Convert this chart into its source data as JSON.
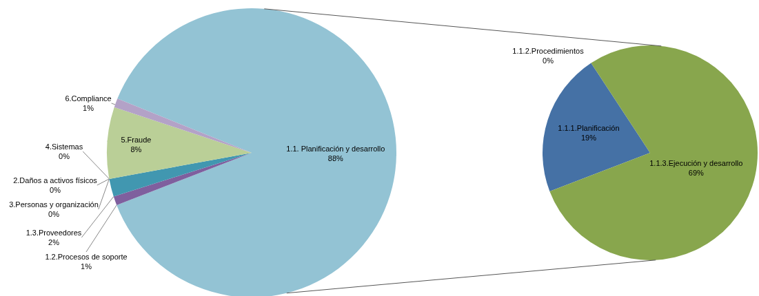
{
  "chart_data": [
    {
      "type": "pie",
      "categories": [
        "1.1. Planificación y desarrollo",
        "1.2.Procesos de soporte",
        "1.3.Proveedores",
        "3.Personas y organización",
        "2.Daños a activos físicos",
        "4.Sistemas",
        "5.Fraude",
        "6.Compliance"
      ],
      "values": [
        88,
        1,
        2,
        0,
        0,
        0,
        8,
        1
      ],
      "value_labels": [
        "88%",
        "1%",
        "2%",
        "0%",
        "0%",
        "0%",
        "8%",
        "1%"
      ],
      "colors": [
        "#93c3d4",
        "#7f5f9e",
        "#4197b0",
        "#4f81bd",
        "#d99694",
        "#c0504d",
        "#bacf97",
        "#b3a2c7"
      ]
    },
    {
      "type": "pie",
      "categories": [
        "1.1.1.Planificación",
        "1.1.2.Procedimientos",
        "1.1.3.Ejecución y desarrollo"
      ],
      "values": [
        19,
        0,
        69
      ],
      "value_labels": [
        "19%",
        "0%",
        "69%"
      ],
      "colors": [
        "#4571a5",
        "#c0504d",
        "#88a64d"
      ]
    }
  ]
}
